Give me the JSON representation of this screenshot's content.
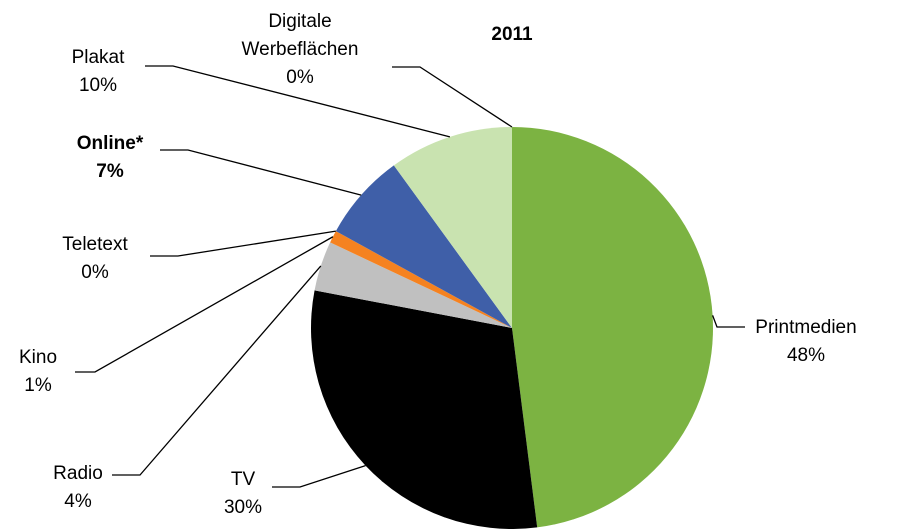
{
  "chart_data": {
    "type": "pie",
    "title": "2011",
    "categories": [
      "Printmedien",
      "TV",
      "Radio",
      "Kino",
      "Teletext",
      "Online*",
      "Plakat",
      "Digitale Werbeflächen"
    ],
    "values": [
      48,
      30,
      4,
      1,
      0,
      7,
      10,
      0
    ],
    "value_labels": [
      "48%",
      "30%",
      "4%",
      "1%",
      "0%",
      "7%",
      "10%",
      "0%"
    ],
    "colors": [
      "#7cb342",
      "#000000",
      "#c0c0c0",
      "#f58220",
      "#e8e8e8",
      "#3f5fa8",
      "#c9e3b0",
      "#8c8c8c"
    ],
    "bold": [
      "Online*"
    ]
  }
}
